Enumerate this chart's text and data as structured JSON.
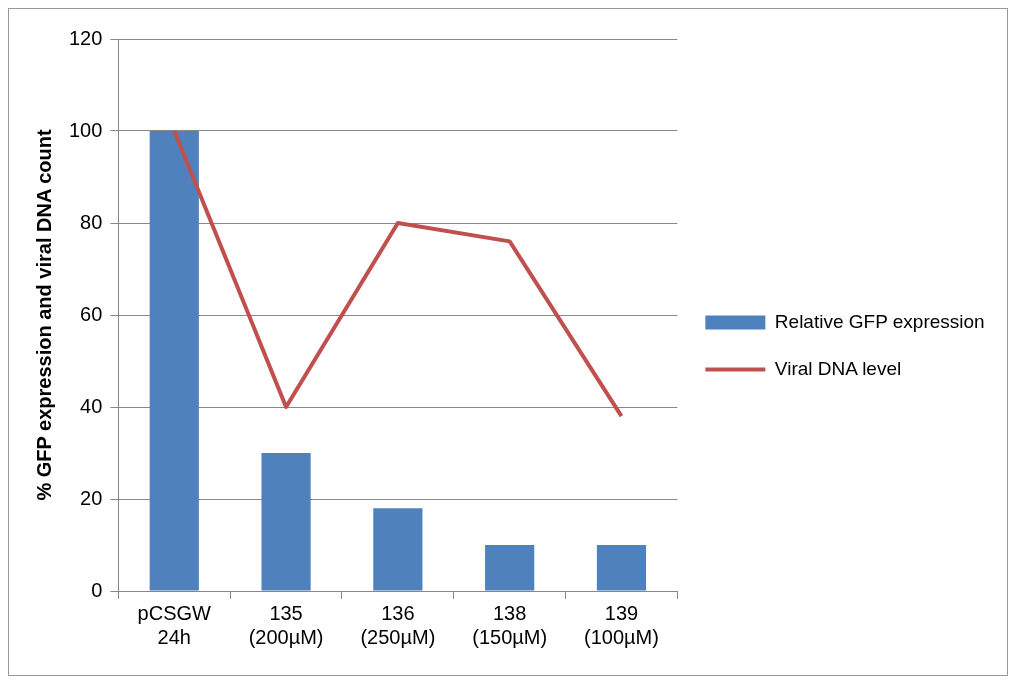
{
  "chart_data": {
    "type": "bar",
    "ylabel": "% GFP expression and viral DNA count",
    "categories": [
      "pCSGW 24h",
      "135 (200µM)",
      "136 (250µM)",
      "138 (150µM)",
      "139 (100µM)"
    ],
    "series": [
      {
        "name": "Relative GFP expression",
        "color": "#4f81bd",
        "values": [
          100,
          30,
          18,
          10,
          10
        ]
      },
      {
        "name": "Viral DNA level",
        "type": "line",
        "color": "#c0504d",
        "values": [
          100,
          40,
          80,
          76,
          38
        ]
      }
    ],
    "ylim": [
      0,
      120
    ],
    "yticks": [
      0,
      20,
      40,
      60,
      80,
      100,
      120
    ],
    "grid": "y",
    "legend": "right",
    "marker": "none"
  }
}
